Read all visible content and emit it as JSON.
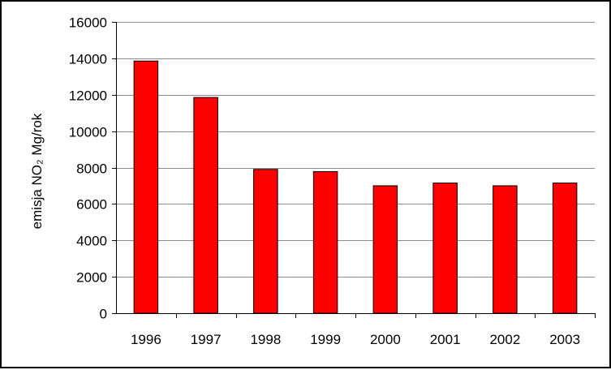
{
  "chart_data": {
    "type": "bar",
    "title": "",
    "xlabel": "",
    "ylabel": "emisja NO₂ Mg/rok",
    "categories": [
      "1996",
      "1997",
      "1998",
      "1999",
      "2000",
      "2001",
      "2002",
      "2003"
    ],
    "values": [
      13850,
      11850,
      7900,
      7780,
      7000,
      7150,
      7000,
      7150
    ],
    "ylim": [
      0,
      16000
    ],
    "yticks": [
      "0",
      "2000",
      "4000",
      "6000",
      "8000",
      "10000",
      "12000",
      "14000",
      "16000"
    ],
    "grid": true,
    "legend": "none",
    "bar_color": "#ff0000",
    "bar_edge_color": "#000000"
  }
}
